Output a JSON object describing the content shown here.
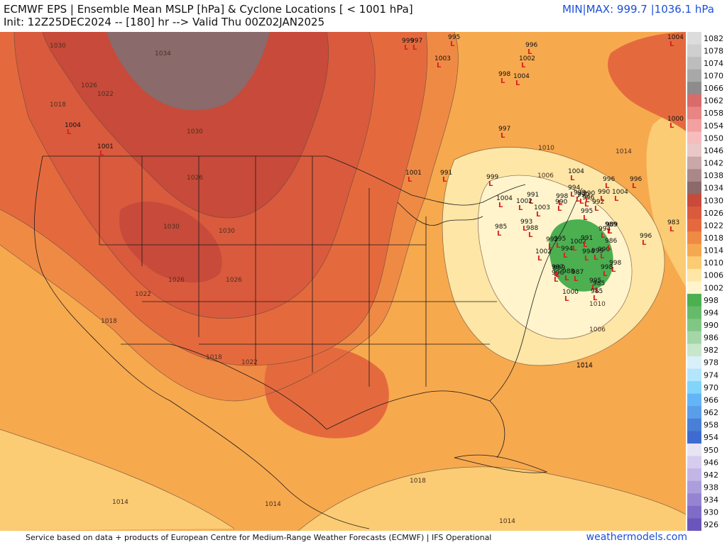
{
  "header": {
    "title_line1": "ECMWF EPS | Ensemble Mean MSLP [hPa] & Cyclone Locations [ < 1001 hPa]",
    "title_line2": "Init: 12Z25DEC2024 -- [180] hr --> Valid Thu 00Z02JAN2025",
    "minmax": "MIN|MAX: 999.7 |1036.1 hPa"
  },
  "footer": {
    "credit": "Service based on data + products of European Centre for Medium-Range Weather Forecasts (ECMWF) | IFS Operational",
    "site": "weathermodels.com"
  },
  "colorbar": {
    "labels": [
      "1082",
      "1078",
      "1074",
      "1070",
      "1066",
      "1062",
      "1058",
      "1054",
      "1050",
      "1046",
      "1042",
      "1038",
      "1034",
      "1030",
      "1026",
      "1022",
      "1018",
      "1014",
      "1010",
      "1006",
      "1002",
      "998",
      "994",
      "990",
      "986",
      "982",
      "978",
      "974",
      "970",
      "966",
      "962",
      "958",
      "954",
      "950",
      "946",
      "942",
      "938",
      "934",
      "930",
      "926"
    ],
    "colors": [
      "#dcdcdc",
      "#cfcfcf",
      "#bdbdbd",
      "#a8a8a8",
      "#8c8c8c",
      "#d96b6b",
      "#e88585",
      "#f2a0a0",
      "#f7bcbc",
      "#e8c8c8",
      "#c8a8a8",
      "#a88888",
      "#8a6a6a",
      "#c84a3a",
      "#d95a3d",
      "#e46a3e",
      "#ef8a45",
      "#f6a850",
      "#fbcc74",
      "#fde6a6",
      "#fff4cc",
      "#4caf50",
      "#66bb6a",
      "#81c784",
      "#a5d6a7",
      "#c8e6c9",
      "#d8f0f8",
      "#b3e5fc",
      "#81d4fa",
      "#64b5f6",
      "#5a9de8",
      "#4a7fd8",
      "#3f6bd0",
      "#e8e4f4",
      "#d6cdee",
      "#c3b6e6",
      "#ac9edc",
      "#9684d2",
      "#7f6cc6",
      "#6a56bb"
    ]
  },
  "map": {
    "isobar_labels": [
      {
        "text": "1030"
      },
      {
        "text": "1034"
      },
      {
        "text": "1026"
      },
      {
        "text": "1022"
      },
      {
        "text": "1018"
      },
      {
        "text": "1030"
      },
      {
        "text": "1026"
      },
      {
        "text": "1030"
      },
      {
        "text": "1026"
      },
      {
        "text": "1030"
      },
      {
        "text": "1026"
      },
      {
        "text": "1022"
      },
      {
        "text": "1018"
      },
      {
        "text": "1018"
      },
      {
        "text": "1022"
      },
      {
        "text": "1014"
      },
      {
        "text": "1014"
      },
      {
        "text": "1018"
      },
      {
        "text": "1014"
      },
      {
        "text": "1014"
      },
      {
        "text": "1010"
      },
      {
        "text": "1006"
      },
      {
        "text": "1006"
      },
      {
        "text": "1010"
      },
      {
        "text": "1014"
      },
      {
        "text": "1014"
      }
    ],
    "cyclone_labels": [
      {
        "text": "995"
      },
      {
        "text": "1004"
      },
      {
        "text": "999"
      },
      {
        "text": "997"
      },
      {
        "text": "1003"
      },
      {
        "text": "1001"
      },
      {
        "text": "996"
      },
      {
        "text": "1002"
      },
      {
        "text": "998"
      },
      {
        "text": "1004"
      },
      {
        "text": "997"
      },
      {
        "text": "1001"
      },
      {
        "text": "1004"
      },
      {
        "text": "1004"
      },
      {
        "text": "1000"
      },
      {
        "text": "991"
      },
      {
        "text": "999"
      },
      {
        "text": "991"
      },
      {
        "text": "1002"
      },
      {
        "text": "1003"
      },
      {
        "text": "998"
      },
      {
        "text": "999"
      },
      {
        "text": "985"
      },
      {
        "text": "993"
      },
      {
        "text": "988"
      },
      {
        "text": "990"
      },
      {
        "text": "996"
      },
      {
        "text": "994"
      },
      {
        "text": "995"
      },
      {
        "text": "992"
      },
      {
        "text": "1002"
      },
      {
        "text": "991"
      },
      {
        "text": "994"
      },
      {
        "text": "997"
      },
      {
        "text": "988"
      },
      {
        "text": "987"
      },
      {
        "text": "1000"
      },
      {
        "text": "996"
      },
      {
        "text": "999"
      },
      {
        "text": "985"
      },
      {
        "text": "998"
      },
      {
        "text": "990"
      },
      {
        "text": "986"
      },
      {
        "text": "989"
      },
      {
        "text": "994"
      },
      {
        "text": "995"
      },
      {
        "text": "992"
      },
      {
        "text": "989"
      },
      {
        "text": "990"
      },
      {
        "text": "1004"
      },
      {
        "text": "996"
      },
      {
        "text": "983"
      },
      {
        "text": "996"
      },
      {
        "text": "1002"
      },
      {
        "text": "999"
      },
      {
        "text": "1004"
      },
      {
        "text": "990"
      },
      {
        "text": "996"
      },
      {
        "text": "990"
      },
      {
        "text": "994"
      },
      {
        "text": "995"
      },
      {
        "text": "985"
      },
      {
        "text": "998"
      }
    ]
  }
}
